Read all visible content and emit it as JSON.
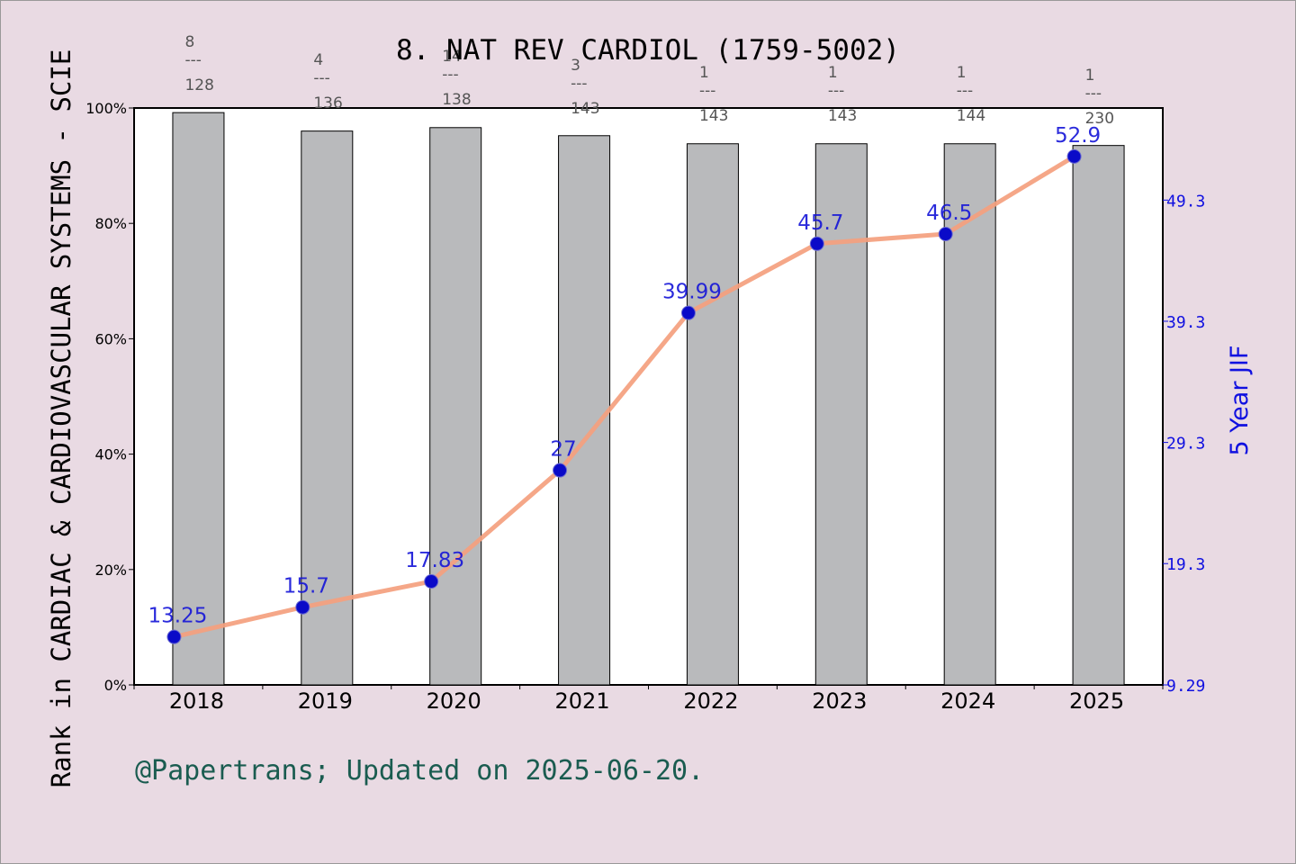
{
  "chart_data": {
    "type": "bar+line",
    "title": "8. NAT REV CARDIOL (1759-5002)",
    "ylabel_left": "Rank in CARDIAC & CARDIOVASCULAR SYSTEMS - SCIE",
    "ylabel_right": "5 Year JIF",
    "footer": "@Papertrans; Updated on 2025-06-20.",
    "categories": [
      "2018",
      "2019",
      "2020",
      "2021",
      "2022",
      "2023",
      "2024",
      "2025"
    ],
    "bars": {
      "name": "Rank percentile",
      "values": [
        99.2,
        96.0,
        96.6,
        95.2,
        93.8,
        93.8,
        93.8,
        93.5
      ],
      "ylim": [
        0,
        100
      ],
      "ticks": [
        "0%",
        "20%",
        "40%",
        "60%",
        "80%",
        "100%"
      ],
      "color": "#b9babc"
    },
    "rank_labels": [
      {
        "rank": "8",
        "sep": "---",
        "total": "128"
      },
      {
        "rank": "4",
        "sep": "---",
        "total": "136"
      },
      {
        "rank": "14",
        "sep": "---",
        "total": "138"
      },
      {
        "rank": "3",
        "sep": "---",
        "total": "143"
      },
      {
        "rank": "1",
        "sep": "---",
        "total": "143"
      },
      {
        "rank": "1",
        "sep": "---",
        "total": "143"
      },
      {
        "rank": "1",
        "sep": "---",
        "total": "144"
      },
      {
        "rank": "1",
        "sep": "---",
        "total": "230"
      }
    ],
    "line": {
      "name": "5 Year JIF",
      "values": [
        13.25,
        15.7,
        17.83,
        27,
        39.99,
        45.7,
        46.5,
        52.9
      ],
      "labels": [
        "13.25",
        "15.7",
        "17.83",
        "27",
        "39.99",
        "45.7",
        "46.5",
        "52.9"
      ],
      "ylim": [
        9.29,
        56.9
      ],
      "ticks": [
        "9.29",
        "19.3",
        "29.3",
        "39.3",
        "49.3"
      ],
      "tick_values": [
        9.29,
        19.3,
        29.3,
        39.3,
        49.3
      ],
      "line_color": "#f4a07e",
      "marker_color": "#0a0ac8"
    }
  }
}
